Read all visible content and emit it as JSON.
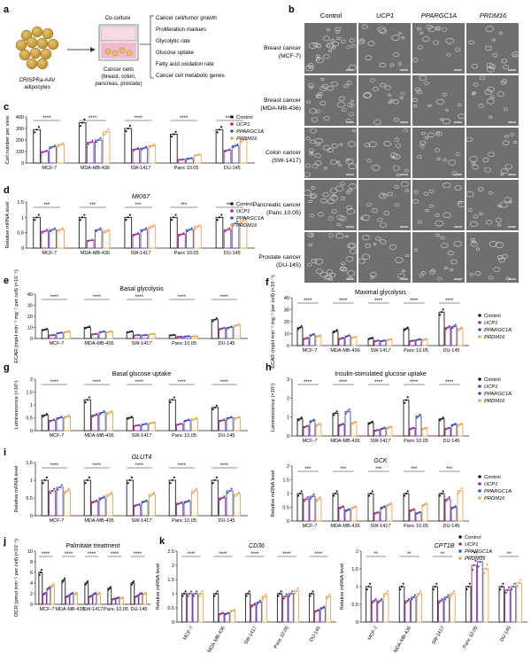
{
  "colors": {
    "control": "#1a1a1a",
    "ucp1": "#9b2a8c",
    "pparg": "#3b4fb8",
    "prdm16": "#f0a04a",
    "micro_bg": "#6f6f6f"
  },
  "panel_labels": [
    "a",
    "b",
    "c",
    "d",
    "e",
    "f",
    "g",
    "h",
    "i",
    "j",
    "k"
  ],
  "schematic": {
    "left_label": [
      "CRISPRa-AAV",
      "adipocytes"
    ],
    "coculture": "Co-culture",
    "cancer_label": [
      "Cancer cells",
      "(breast, colon,",
      "pancreas, prostate)"
    ],
    "readouts": [
      "Cancer cell/tumor growth",
      "Proliferation markers",
      "Glycolytic rate",
      "Glucose uptake",
      "Fatty acid oxidation rate",
      "Cancer cell metabolic genes"
    ]
  },
  "micrographs": {
    "columns": [
      "Control",
      "UCP1",
      "PPARGC1A",
      "PRDM16"
    ],
    "rows": [
      [
        "Breast cancer",
        "(MCF-7)"
      ],
      [
        "Breast cancer",
        "(MDA-MB-436)"
      ],
      [
        "Colon cancer",
        "(SW-1417)"
      ],
      [
        "Pancreatic cancer",
        "(Panc 10.05)"
      ],
      [
        "Prostate cancer",
        "(DU-145)"
      ]
    ]
  },
  "legend_entries": [
    "Control",
    "UCP1",
    "PPARGC1A",
    "PRDM16"
  ],
  "chart_data": [
    {
      "panel": "c",
      "type": "bar",
      "title": "",
      "ylabel": "Cell number per view",
      "ylim": [
        0,
        400
      ],
      "yticks": [
        0,
        100,
        200,
        300,
        400
      ],
      "categories": [
        "MCF-7",
        "MDA-MB-436",
        "SW-1417",
        "Panc 10.05",
        "DU-145"
      ],
      "significance": "****",
      "series": [
        {
          "name": "Control",
          "values": [
            290,
            350,
            300,
            250,
            290
          ]
        },
        {
          "name": "UCP1",
          "values": [
            100,
            180,
            120,
            30,
            110
          ]
        },
        {
          "name": "PPARGC1A",
          "values": [
            140,
            200,
            130,
            40,
            150
          ]
        },
        {
          "name": "PRDM16",
          "values": [
            160,
            270,
            150,
            70,
            200
          ]
        }
      ]
    },
    {
      "panel": "d",
      "type": "bar",
      "title": "MKI67",
      "ylabel": "Relative mRNA level",
      "ylim": [
        0,
        1.5
      ],
      "yticks": [
        0,
        0.5,
        1.0,
        1.5
      ],
      "categories": [
        "MCF-7",
        "MDA-MB-436",
        "SW-1417",
        "Panc 10.05",
        "DU-145"
      ],
      "significance": "***",
      "series": [
        {
          "name": "Control",
          "values": [
            1.0,
            1.0,
            1.0,
            1.0,
            1.0
          ]
        },
        {
          "name": "UCP1",
          "values": [
            0.55,
            0.25,
            0.45,
            0.45,
            0.6
          ]
        },
        {
          "name": "PPARGC1A",
          "values": [
            0.6,
            0.6,
            0.6,
            0.6,
            0.8
          ]
        },
        {
          "name": "PRDM16",
          "values": [
            0.6,
            0.55,
            0.7,
            0.7,
            0.9
          ]
        }
      ]
    },
    {
      "panel": "e",
      "type": "bar",
      "title": "Basal glycolysis",
      "ylabel": "ECAR (mpH min⁻¹ mg⁻¹ per cell) (×10⁻⁵)",
      "ylim": [
        0,
        40
      ],
      "yticks": [
        0,
        10,
        20,
        30,
        40
      ],
      "categories": [
        "MCF-7",
        "MDA-MB-436",
        "SW-1417",
        "Panc 10.05",
        "DU-145"
      ],
      "significance": "****",
      "series": [
        {
          "name": "Control",
          "values": [
            8,
            10,
            6,
            3,
            17
          ]
        },
        {
          "name": "UCP1",
          "values": [
            3,
            4,
            3,
            1.5,
            9
          ]
        },
        {
          "name": "PPARGC1A",
          "values": [
            5,
            6,
            3,
            2,
            10
          ]
        },
        {
          "name": "PRDM16",
          "values": [
            6,
            6,
            4,
            2,
            12
          ]
        }
      ]
    },
    {
      "panel": "f",
      "type": "bar",
      "title": "Maximal glycolysis",
      "ylabel": "ECAR (mpH min⁻¹ mg⁻¹ per cell) (×10⁻⁵)",
      "ylim": [
        0,
        40
      ],
      "yticks": [
        0,
        10,
        20,
        30,
        40
      ],
      "categories": [
        "MCF-7",
        "MDA-MB-436",
        "SW-1417",
        "Panc 10.05",
        "DU-145"
      ],
      "significance": "****",
      "series": [
        {
          "name": "Control",
          "values": [
            15,
            12,
            6,
            14,
            28
          ]
        },
        {
          "name": "UCP1",
          "values": [
            6,
            6,
            4,
            4,
            15
          ]
        },
        {
          "name": "PPARGC1A",
          "values": [
            9,
            8,
            4,
            5,
            16
          ]
        },
        {
          "name": "PRDM16",
          "values": [
            8,
            7,
            5,
            5,
            14
          ]
        }
      ]
    },
    {
      "panel": "g",
      "type": "bar",
      "title": "Basal glucose uptake",
      "ylabel": "Luminescence (×10⁵)",
      "ylim": [
        0,
        2.0
      ],
      "yticks": [
        0,
        0.5,
        1.0,
        1.5,
        2.0
      ],
      "categories": [
        "MCF-7",
        "MDA-MB-436",
        "SW-1417",
        "Panc 10.05",
        "DU-145"
      ],
      "significance": "****",
      "series": [
        {
          "name": "Control",
          "values": [
            0.6,
            1.2,
            0.5,
            1.2,
            0.9
          ]
        },
        {
          "name": "UCP1",
          "values": [
            0.4,
            0.6,
            0.2,
            0.25,
            0.4
          ]
        },
        {
          "name": "PPARGC1A",
          "values": [
            0.5,
            0.7,
            0.25,
            0.4,
            0.5
          ]
        },
        {
          "name": "PRDM16",
          "values": [
            0.55,
            0.7,
            0.3,
            0.45,
            0.5
          ]
        }
      ]
    },
    {
      "panel": "h",
      "type": "bar",
      "title": "Insulin-stimulated glucose uptake",
      "ylabel": "Luminescence (×10⁵)",
      "ylim": [
        0,
        3.0
      ],
      "yticks": [
        0,
        1.0,
        2.0,
        3.0
      ],
      "categories": [
        "MCF-7",
        "MDA-MB-436",
        "SW-1417",
        "Panc 10.05",
        "DU-145"
      ],
      "significance": "****",
      "series": [
        {
          "name": "Control",
          "values": [
            0.9,
            1.2,
            0.7,
            1.9,
            0.9
          ]
        },
        {
          "name": "UCP1",
          "values": [
            0.5,
            0.6,
            0.3,
            0.4,
            0.4
          ]
        },
        {
          "name": "PPARGC1A",
          "values": [
            0.8,
            1.3,
            0.4,
            1.05,
            0.6
          ]
        },
        {
          "name": "PRDM16",
          "values": [
            0.6,
            0.7,
            0.45,
            0.4,
            0.6
          ]
        }
      ]
    },
    {
      "panel": "i1",
      "type": "bar",
      "title": "GLUT4",
      "ylabel": "Relative mRNA level",
      "ylim": [
        0,
        1.5
      ],
      "yticks": [
        0,
        0.5,
        1.0,
        1.5
      ],
      "categories": [
        "MCF-7",
        "MDA-MB-436",
        "SW-1417",
        "Panc 10.05",
        "DU-145"
      ],
      "significance": "****",
      "series": [
        {
          "name": "Control",
          "values": [
            1.0,
            1.0,
            1.0,
            1.0,
            1.0
          ]
        },
        {
          "name": "UCP1",
          "values": [
            0.7,
            0.4,
            0.3,
            0.35,
            0.5
          ]
        },
        {
          "name": "PPARGC1A",
          "values": [
            0.8,
            0.5,
            0.4,
            0.4,
            0.7
          ]
        },
        {
          "name": "PRDM16",
          "values": [
            0.7,
            0.6,
            0.6,
            0.7,
            0.6
          ]
        }
      ]
    },
    {
      "panel": "i2",
      "type": "bar",
      "title": "GCK",
      "ylabel": "Relative mRNA level",
      "ylim": [
        0,
        2.0
      ],
      "yticks": [
        0,
        0.5,
        1.0,
        1.5,
        2.0
      ],
      "categories": [
        "MCF-7",
        "MDA-MB-436",
        "SW-1417",
        "Panc 10.05",
        "DU-145"
      ],
      "significance": "***",
      "series": [
        {
          "name": "Control",
          "values": [
            1.0,
            1.0,
            1.0,
            1.0,
            1.0
          ]
        },
        {
          "name": "UCP1",
          "values": [
            0.8,
            0.5,
            0.3,
            0.4,
            0.8
          ]
        },
        {
          "name": "PPARGC1A",
          "values": [
            0.9,
            0.4,
            0.5,
            0.3,
            0.5
          ]
        },
        {
          "name": "PRDM16",
          "values": [
            0.8,
            0.5,
            0.6,
            0.6,
            1.1
          ]
        }
      ]
    },
    {
      "panel": "j",
      "type": "bar",
      "title": "Palmitate treatment",
      "ylabel": "OCR (pmol min⁻¹ per cell) (×10⁻⁵)",
      "ylim": [
        0,
        10
      ],
      "yticks": [
        0,
        2,
        4,
        6,
        8,
        10
      ],
      "categories": [
        "MCF-7",
        "MDA-MB-436",
        "SW-1417",
        "Panc 10.05",
        "DU-145"
      ],
      "significance": "****",
      "series": [
        {
          "name": "Control",
          "values": [
            6,
            4.5,
            4,
            3,
            4
          ]
        },
        {
          "name": "UCP1",
          "values": [
            2,
            1.5,
            1.5,
            1,
            1.5
          ]
        },
        {
          "name": "PPARGC1A",
          "values": [
            3,
            2,
            2,
            1.2,
            2
          ]
        },
        {
          "name": "PRDM16",
          "values": [
            3.5,
            2,
            2,
            1.2,
            2
          ]
        }
      ]
    },
    {
      "panel": "k1",
      "type": "bar",
      "title": "CD36",
      "ylabel": "Relative mRNA level",
      "ylim": [
        0,
        2.5
      ],
      "yticks": [
        0,
        0.5,
        1.0,
        1.5,
        2.0,
        2.5
      ],
      "categories": [
        "MCF-7",
        "MDA-MB-436",
        "SW-1417",
        "Panc 10.05",
        "DU-145"
      ],
      "significance": "****",
      "series": [
        {
          "name": "Control",
          "values": [
            1.0,
            1.0,
            1.0,
            1.0,
            1.0
          ]
        },
        {
          "name": "UCP1",
          "values": [
            1.0,
            0.3,
            0.6,
            0.9,
            0.4
          ]
        },
        {
          "name": "PPARGC1A",
          "values": [
            1.0,
            0.3,
            0.7,
            1.0,
            0.5
          ]
        },
        {
          "name": "PRDM16",
          "values": [
            1.0,
            0.4,
            0.9,
            1.1,
            0.9
          ]
        }
      ]
    },
    {
      "panel": "k2",
      "type": "bar",
      "title": "CPT1B",
      "ylabel": "Relative mRNA level",
      "ylim": [
        0,
        2.0
      ],
      "yticks": [
        0,
        0.5,
        1.0,
        1.5,
        2.0
      ],
      "categories": [
        "MCF-7",
        "MDA-MB-436",
        "SW-1417",
        "Panc 10.05",
        "DU-145"
      ],
      "significance": "**",
      "series": [
        {
          "name": "Control",
          "values": [
            1.0,
            1.0,
            1.0,
            1.0,
            1.0
          ]
        },
        {
          "name": "UCP1",
          "values": [
            0.6,
            0.6,
            0.6,
            1.6,
            0.9
          ]
        },
        {
          "name": "PPARGC1A",
          "values": [
            0.6,
            0.7,
            0.7,
            1.7,
            1.0
          ]
        },
        {
          "name": "PRDM16",
          "values": [
            0.8,
            0.8,
            0.8,
            1.5,
            1.1
          ]
        }
      ]
    }
  ]
}
